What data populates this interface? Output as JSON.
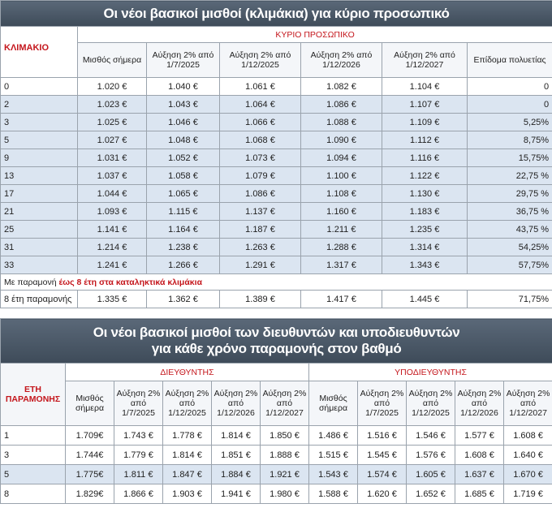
{
  "table1": {
    "title": "Οι νέοι βασικοί μισθοί (κλιμάκια) για κύριο προσωπικό",
    "row_header": "ΚΛΙΜΑΚΙΟ",
    "group": "ΚΥΡΙΟ ΠΡΟΣΩΠΙΚΟ",
    "columns": [
      "Μισθός σήμερα",
      "Αύξηση 2% από 1/7/2025",
      "Αύξηση 2% από 1/12/2025",
      "Αύξηση 2% από 1/12/2026",
      "Αύξηση 2% από 1/12/2027",
      "Επίδομα πολυετίας"
    ],
    "rows": [
      [
        "0",
        "1.020 €",
        "1.040 €",
        "1.061 €",
        "1.082 €",
        "1.104 €",
        "0"
      ],
      [
        "2",
        "1.023 €",
        "1.043 €",
        "1.064 €",
        "1.086 €",
        "1.107 €",
        "0"
      ],
      [
        "3",
        "1.025 €",
        "1.046 €",
        "1.066 €",
        "1.088 €",
        "1.109 €",
        "5,25%"
      ],
      [
        "5",
        "1.027 €",
        "1.048 €",
        "1.068 €",
        "1.090 €",
        "1.112 €",
        "8,75%"
      ],
      [
        "9",
        "1.031 €",
        "1.052 €",
        "1.073 €",
        "1.094 €",
        "1.116 €",
        "15,75%"
      ],
      [
        "13",
        "1.037 €",
        "1.058 €",
        "1.079 €",
        "1.100 €",
        "1.122 €",
        "22,75 %"
      ],
      [
        "17",
        "1.044 €",
        "1.065 €",
        "1.086 €",
        "1.108 €",
        "1.130 €",
        "29,75 %"
      ],
      [
        "21",
        "1.093 €",
        "1.115 €",
        "1.137 €",
        "1.160 €",
        "1.183 €",
        "36,75 %"
      ],
      [
        "25",
        "1.141 €",
        "1.164 €",
        "1.187 €",
        "1.211 €",
        "1.235 €",
        "43,75 %"
      ],
      [
        "31",
        "1.214 €",
        "1.238 €",
        "1.263 €",
        "1.288 €",
        "1.314 €",
        "54,25%"
      ],
      [
        "33",
        "1.241 €",
        "1.266 €",
        "1.291 €",
        "1.317 €",
        "1.343 €",
        "57,75%"
      ]
    ],
    "note": {
      "text": "Με παραμονή",
      "highlight": "έως 8 έτη στα καταληκτικά κλιμάκια"
    },
    "final_row": [
      "8 έτη παραμονής",
      "1.335 €",
      "1.362 €",
      "1.389 €",
      "1.417 €",
      "1.445 €",
      "71,75%"
    ]
  },
  "table2": {
    "title_lines": [
      "Οι νέοι βασικοί μισθοί των διευθυντών και  υποδιευθυντών",
      "για κάθε χρόνο παραμονής στον βαθμό"
    ],
    "row_header": "ΕΤΗ ΠΑΡΑΜΟΝΗΣ",
    "groups": [
      {
        "name": "ΔΙΕΥΘΥΝΤΗΣ",
        "columns": [
          "Μισθός σήμερα",
          "Αύξηση 2% από 1/7/2025",
          "Αύξηση 2% από 1/12/2025",
          "Αύξηση 2% από 1/12/2026",
          "Αύξηση 2% από 1/12/2027"
        ]
      },
      {
        "name": "ΥΠΟΔΙΕΥΘΥΝΤΗΣ",
        "columns": [
          "Μισθός σήμερα",
          "Αύξηση 2% από 1/7/2025",
          "Αύξηση 2% από 1/12/2025",
          "Αύξηση 2% από 1/12/2026",
          "Αύξηση 2% από 1/12/2027"
        ]
      }
    ],
    "rows": [
      [
        "1",
        "1.709€",
        "1.743 €",
        "1.778 €",
        "1.814 €",
        "1.850 €",
        "1.486 €",
        "1.516 €",
        "1.546 €",
        "1.577 €",
        "1.608 €"
      ],
      [
        "3",
        "1.744€",
        "1.779 €",
        "1.814 €",
        "1.851 €",
        "1.888 €",
        "1.515 €",
        "1.545 €",
        "1.576 €",
        "1.608 €",
        "1.640 €"
      ],
      [
        "5",
        "1.775€",
        "1.811 €",
        "1.847 €",
        "1.884 €",
        "1.921 €",
        "1.543 €",
        "1.574 €",
        "1.605 €",
        "1.637 €",
        "1.670 €"
      ],
      [
        "8",
        "1.829€",
        "1.866 €",
        "1.903 €",
        "1.941 €",
        "1.980 €",
        "1.588 €",
        "1.620 €",
        "1.652 €",
        "1.685 €",
        "1.719 €"
      ]
    ]
  }
}
